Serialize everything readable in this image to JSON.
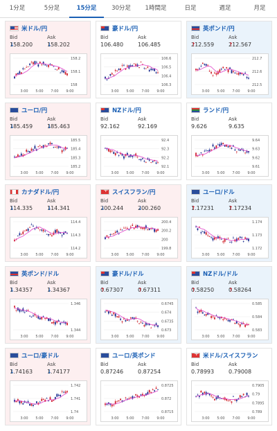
{
  "tabs": [
    {
      "label": "1分足",
      "active": false
    },
    {
      "label": "5分足",
      "active": false
    },
    {
      "label": "15分足",
      "active": true
    },
    {
      "label": "30分足",
      "active": false
    },
    {
      "label": "1時間足",
      "active": false
    },
    {
      "label": "日足",
      "active": false
    },
    {
      "label": "週足",
      "active": false
    },
    {
      "label": "月足",
      "active": false
    }
  ],
  "labels": {
    "bid": "Bid",
    "ask": "Ask"
  },
  "colors": {
    "up_candle": "#d0202a",
    "down_candle": "#1a2c8f",
    "ma_line": "#e040c8",
    "down_arrow": "#1a5fb4",
    "up_arrow": "#d0202a"
  },
  "cards": [
    {
      "name": "米ドル/円",
      "flag": "us",
      "trend": "down",
      "bid": "↓158.200",
      "ask": "↓158.202",
      "chart_data": {
        "type": "candlestick",
        "y_ticks": [
          "158.2",
          "158.1",
          "158"
        ],
        "y_range": [
          157.95,
          158.25
        ],
        "x_ticks": [
          "3:00",
          "5:00",
          "7:00",
          "9:00"
        ],
        "seed": 3,
        "shape": [
          0.35,
          0.5,
          0.8,
          0.75,
          0.7,
          0.6,
          0.4
        ]
      }
    },
    {
      "name": "豪ドル/円",
      "flag": "au",
      "trend": "flat",
      "bid": "106.480",
      "ask": "106.485",
      "chart_data": {
        "type": "candlestick",
        "y_ticks": [
          "106.6",
          "106.5",
          "106.4",
          "106.3"
        ],
        "y_range": [
          106.28,
          106.62
        ],
        "x_ticks": [
          "3:00",
          "5:00",
          "7:00",
          "9:00"
        ],
        "seed": 7,
        "shape": [
          0.25,
          0.45,
          0.65,
          0.7,
          0.75,
          0.6,
          0.5
        ]
      }
    },
    {
      "name": "英ポンド/円",
      "flag": "gb",
      "trend": "up",
      "bid": "↑212.559",
      "ask": "↑212.567",
      "chart_data": {
        "type": "candlestick",
        "y_ticks": [
          "212.7",
          "212.6",
          "212.5"
        ],
        "y_range": [
          212.45,
          212.75
        ],
        "x_ticks": [
          "3:00",
          "5:00",
          "7:00",
          "9:00"
        ],
        "seed": 11,
        "shape": [
          0.5,
          0.8,
          0.35,
          0.6,
          0.55,
          0.4,
          0.35
        ]
      }
    },
    {
      "name": "ユーロ/円",
      "flag": "eu",
      "trend": "down",
      "bid": "↓185.459",
      "ask": "↓185.463",
      "chart_data": {
        "type": "candlestick",
        "y_ticks": [
          "185.5",
          "185.4",
          "185.3",
          "185.2"
        ],
        "y_range": [
          185.15,
          185.55
        ],
        "x_ticks": [
          "3:00",
          "5:00",
          "7:00",
          "9:00"
        ],
        "seed": 5,
        "shape": [
          0.3,
          0.5,
          0.6,
          0.75,
          0.8,
          0.65,
          0.6
        ]
      }
    },
    {
      "name": "NZドル/円",
      "flag": "nz",
      "trend": "flat",
      "bid": "92.162",
      "ask": "92.169",
      "chart_data": {
        "type": "candlestick",
        "y_ticks": [
          "92.4",
          "92.3",
          "92.2",
          "92.1"
        ],
        "y_range": [
          92.05,
          92.45
        ],
        "x_ticks": [
          "3:00",
          "5:00",
          "7:00",
          "9:00"
        ],
        "seed": 13,
        "shape": [
          0.65,
          0.55,
          0.4,
          0.45,
          0.35,
          0.25,
          0.15
        ]
      }
    },
    {
      "name": "ランド/円",
      "flag": "za",
      "trend": "flat",
      "bid": "9.626",
      "ask": "9.635",
      "chart_data": {
        "type": "candlestick",
        "y_ticks": [
          "9.64",
          "9.63",
          "9.62",
          "9.61"
        ],
        "y_range": [
          9.605,
          9.645
        ],
        "x_ticks": [
          "3:00",
          "5:00",
          "7:00",
          "9:00"
        ],
        "seed": 17,
        "shape": [
          0.4,
          0.55,
          0.7,
          0.85,
          0.7,
          0.6,
          0.55
        ]
      }
    },
    {
      "name": "カナダドル/円",
      "flag": "ca",
      "trend": "down",
      "bid": "↓114.335",
      "ask": "↓114.341",
      "chart_data": {
        "type": "candlestick",
        "y_ticks": [
          "114.4",
          "114.3",
          "114.2"
        ],
        "y_range": [
          114.15,
          114.45
        ],
        "x_ticks": [
          "3:00",
          "5:00",
          "7:00",
          "9:00"
        ],
        "seed": 19,
        "shape": [
          0.3,
          0.6,
          0.8,
          0.65,
          0.55,
          0.6,
          0.55
        ]
      }
    },
    {
      "name": "スイスフラン/円",
      "flag": "ch",
      "trend": "down",
      "bid": "↓200.244",
      "ask": "↓200.260",
      "chart_data": {
        "type": "candlestick",
        "y_ticks": [
          "200.4",
          "200.2",
          "200",
          "199.8"
        ],
        "y_range": [
          199.75,
          200.45
        ],
        "x_ticks": [
          "3:00",
          "5:00",
          "7:00",
          "9:00"
        ],
        "seed": 23,
        "shape": [
          0.35,
          0.55,
          0.7,
          0.75,
          0.75,
          0.72,
          0.65
        ]
      }
    },
    {
      "name": "ユーロ/ドル",
      "flag": "eu",
      "trend": "up",
      "bid": "↑1.17231",
      "ask": "↑1.17234",
      "chart_data": {
        "type": "candlestick",
        "y_ticks": [
          "1.174",
          "1.173",
          "1.172"
        ],
        "y_range": [
          1.1715,
          1.1745
        ],
        "x_ticks": [
          "3:00",
          "5:00",
          "7:00",
          "9:00"
        ],
        "seed": 29,
        "shape": [
          0.75,
          0.55,
          0.4,
          0.35,
          0.3,
          0.35,
          0.4
        ]
      }
    },
    {
      "name": "英ポンド/ドル",
      "flag": "gb",
      "trend": "down",
      "bid": "↓1.34357",
      "ask": "↓1.34367",
      "chart_data": {
        "type": "candlestick",
        "y_ticks": [
          "1.346",
          "1.344"
        ],
        "y_range": [
          1.3425,
          1.3465
        ],
        "x_ticks": [
          "3:00",
          "5:00",
          "7:00",
          "9:00"
        ],
        "seed": 31,
        "shape": [
          0.8,
          0.7,
          0.55,
          0.45,
          0.4,
          0.3,
          0.25
        ]
      }
    },
    {
      "name": "豪ドル/ドル",
      "flag": "au",
      "trend": "up",
      "bid": "↑0.67307",
      "ask": "↑0.67311",
      "chart_data": {
        "type": "candlestick",
        "y_ticks": [
          "0.6745",
          "0.674",
          "0.6735",
          "0.673"
        ],
        "y_range": [
          0.6728,
          0.6747
        ],
        "x_ticks": [
          "3:00",
          "5:00",
          "7:00",
          "9:00"
        ],
        "seed": 37,
        "shape": [
          0.7,
          0.55,
          0.35,
          0.45,
          0.3,
          0.2,
          0.15
        ]
      }
    },
    {
      "name": "NZドル/ドル",
      "flag": "nz",
      "trend": "up",
      "bid": "↑0.58250",
      "ask": "↑0.58264",
      "chart_data": {
        "type": "candlestick",
        "y_ticks": [
          "0.585",
          "0.584",
          "0.583"
        ],
        "y_range": [
          0.5825,
          0.5855
        ],
        "x_ticks": [
          "3:00",
          "5:00",
          "7:00",
          "9:00"
        ],
        "seed": 41,
        "shape": [
          0.75,
          0.6,
          0.5,
          0.45,
          0.35,
          0.25,
          0.2
        ]
      }
    },
    {
      "name": "ユーロ/豪ドル",
      "flag": "eu",
      "trend": "down",
      "bid": "↓1.74163",
      "ask": "↓1.74177",
      "chart_data": {
        "type": "candlestick",
        "y_ticks": [
          "1.742",
          "1.741",
          "1.74"
        ],
        "y_range": [
          1.7393,
          1.7425
        ],
        "x_ticks": [
          "3:00",
          "5:00",
          "7:00",
          "9:00"
        ],
        "seed": 43,
        "shape": [
          0.4,
          0.35,
          0.3,
          0.4,
          0.45,
          0.6,
          0.8
        ]
      }
    },
    {
      "name": "ユーロ/英ポンド",
      "flag": "eu",
      "trend": "flat",
      "bid": "0.87246",
      "ask": "0.87254",
      "chart_data": {
        "type": "candlestick",
        "y_ticks": [
          "0.8725",
          "0.872",
          "0.8715"
        ],
        "y_range": [
          0.8712,
          0.8727
        ],
        "x_ticks": [
          "3:00",
          "5:00",
          "7:00",
          "9:00"
        ],
        "seed": 47,
        "shape": [
          0.25,
          0.35,
          0.45,
          0.55,
          0.6,
          0.7,
          0.8
        ]
      }
    },
    {
      "name": "米ドル/スイスフラン",
      "flag": "ch",
      "trend": "flat",
      "bid": "0.78993",
      "ask": "0.79008",
      "chart_data": {
        "type": "candlestick",
        "y_ticks": [
          "0.7905",
          "0.79",
          "0.7895",
          "0.789"
        ],
        "y_range": [
          0.7888,
          0.7907
        ],
        "x_ticks": [
          "3:00",
          "5:00",
          "7:00",
          "9:00"
        ],
        "seed": 53,
        "shape": [
          0.6,
          0.7,
          0.55,
          0.5,
          0.45,
          0.55,
          0.6
        ]
      }
    }
  ]
}
